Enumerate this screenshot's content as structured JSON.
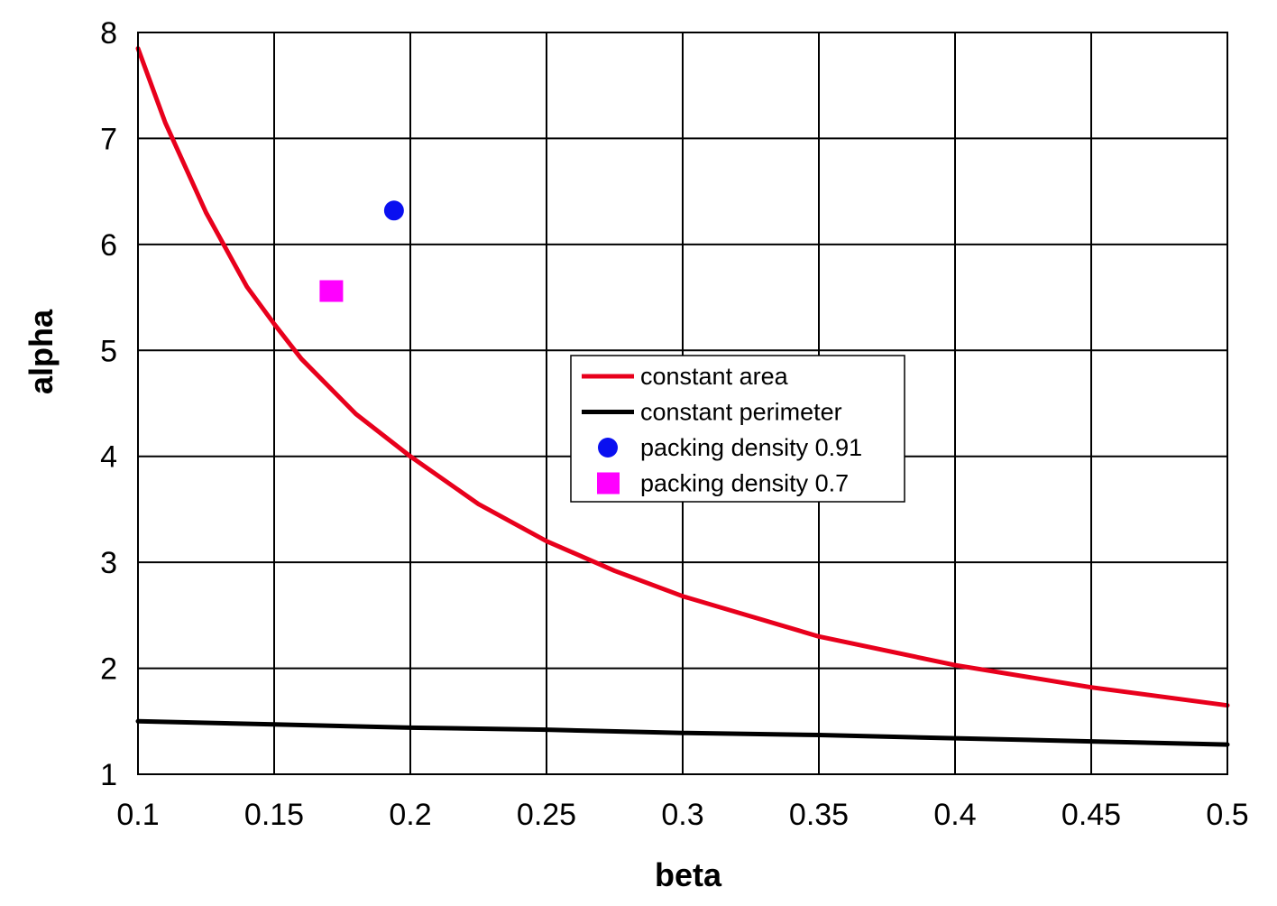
{
  "chart_data": {
    "type": "line",
    "xlabel": "beta",
    "ylabel": "alpha",
    "xlim": [
      0.1,
      0.5
    ],
    "ylim": [
      1,
      8
    ],
    "xticks": [
      0.1,
      0.15,
      0.2,
      0.25,
      0.3,
      0.35,
      0.4,
      0.45,
      0.5
    ],
    "xtick_labels": [
      "0.1",
      "0.15",
      "0.2",
      "0.25",
      "0.3",
      "0.35",
      "0.4",
      "0.45",
      "0.5"
    ],
    "yticks": [
      1,
      2,
      3,
      4,
      5,
      6,
      7,
      8
    ],
    "ytick_labels": [
      "1",
      "2",
      "3",
      "4",
      "5",
      "6",
      "7",
      "8"
    ],
    "grid": true,
    "legend_position": "center",
    "series": [
      {
        "name": "constant area",
        "kind": "line",
        "color": "#e8001c",
        "x": [
          0.1,
          0.11,
          0.125,
          0.14,
          0.15,
          0.16,
          0.18,
          0.2,
          0.225,
          0.25,
          0.275,
          0.3,
          0.35,
          0.4,
          0.45,
          0.5
        ],
        "y": [
          7.85,
          7.15,
          6.3,
          5.6,
          5.25,
          4.92,
          4.4,
          4.0,
          3.55,
          3.2,
          2.92,
          2.68,
          2.3,
          2.03,
          1.82,
          1.65
        ]
      },
      {
        "name": "constant perimeter",
        "kind": "line",
        "color": "#000000",
        "x": [
          0.1,
          0.15,
          0.2,
          0.25,
          0.3,
          0.35,
          0.4,
          0.45,
          0.5
        ],
        "y": [
          1.5,
          1.47,
          1.44,
          1.42,
          1.39,
          1.37,
          1.34,
          1.31,
          1.28
        ]
      },
      {
        "name": "packing density 0.91",
        "kind": "scatter",
        "marker": "circle",
        "color": "#0a10f0",
        "x": [
          0.194
        ],
        "y": [
          6.32
        ]
      },
      {
        "name": "packing density 0.7",
        "kind": "scatter",
        "marker": "square",
        "color": "#ff00ff",
        "x": [
          0.171
        ],
        "y": [
          5.56
        ]
      }
    ]
  }
}
